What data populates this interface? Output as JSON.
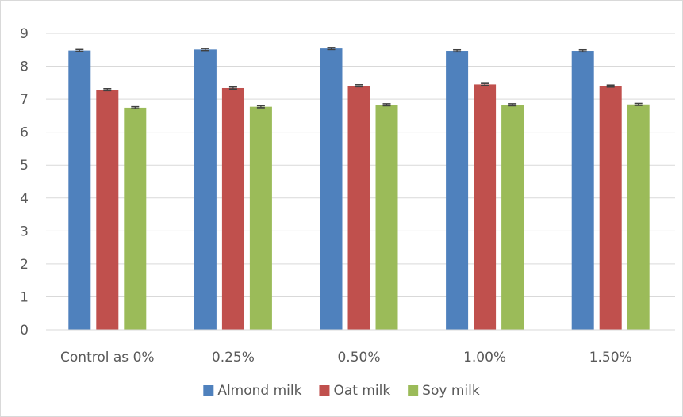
{
  "chart_data": {
    "type": "bar",
    "title": "",
    "xlabel": "",
    "ylabel": "",
    "ylim": [
      0,
      9
    ],
    "yticks": [
      0,
      1,
      2,
      3,
      4,
      5,
      6,
      7,
      8,
      9
    ],
    "grid": true,
    "legend_position": "bottom",
    "categories": [
      "Control as 0%",
      "0.25%",
      "0.50%",
      "1.00%",
      "1.50%"
    ],
    "series": [
      {
        "name": "Almond milk",
        "color": "#4f81bd",
        "values": [
          8.48,
          8.51,
          8.54,
          8.47,
          8.47
        ],
        "errors": [
          0.03,
          0.03,
          0.03,
          0.03,
          0.03
        ]
      },
      {
        "name": "Oat milk",
        "color": "#c0504d",
        "values": [
          7.29,
          7.34,
          7.41,
          7.45,
          7.4
        ],
        "errors": [
          0.03,
          0.03,
          0.03,
          0.03,
          0.03
        ]
      },
      {
        "name": "Soy milk",
        "color": "#9bbb59",
        "values": [
          6.74,
          6.77,
          6.83,
          6.83,
          6.84
        ],
        "errors": [
          0.03,
          0.03,
          0.03,
          0.03,
          0.03
        ]
      }
    ]
  }
}
